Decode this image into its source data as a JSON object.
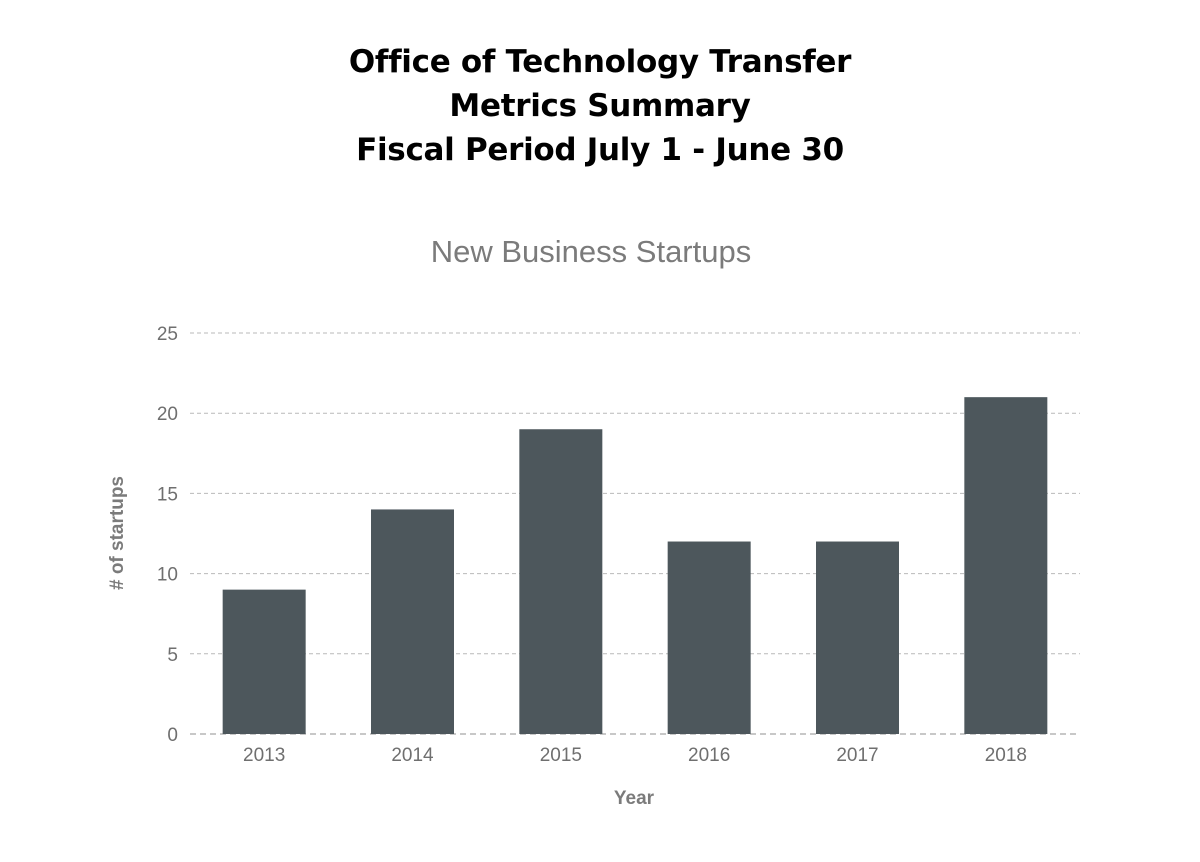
{
  "header": {
    "lines": [
      "Office of Technology Transfer",
      "Metrics Summary",
      "Fiscal Period July 1 - June 30"
    ]
  },
  "chart_data": {
    "type": "bar",
    "title": "New Business Startups",
    "xlabel": "Year",
    "ylabel": "# of startups",
    "categories": [
      "2013",
      "2014",
      "2015",
      "2016",
      "2017",
      "2018"
    ],
    "values": [
      9,
      14,
      19,
      12,
      12,
      21
    ],
    "ylim": [
      0,
      25
    ],
    "yticks": [
      0,
      5,
      10,
      15,
      20,
      25
    ],
    "grid": true,
    "legend": "none",
    "bar_color": "#4d575c"
  }
}
